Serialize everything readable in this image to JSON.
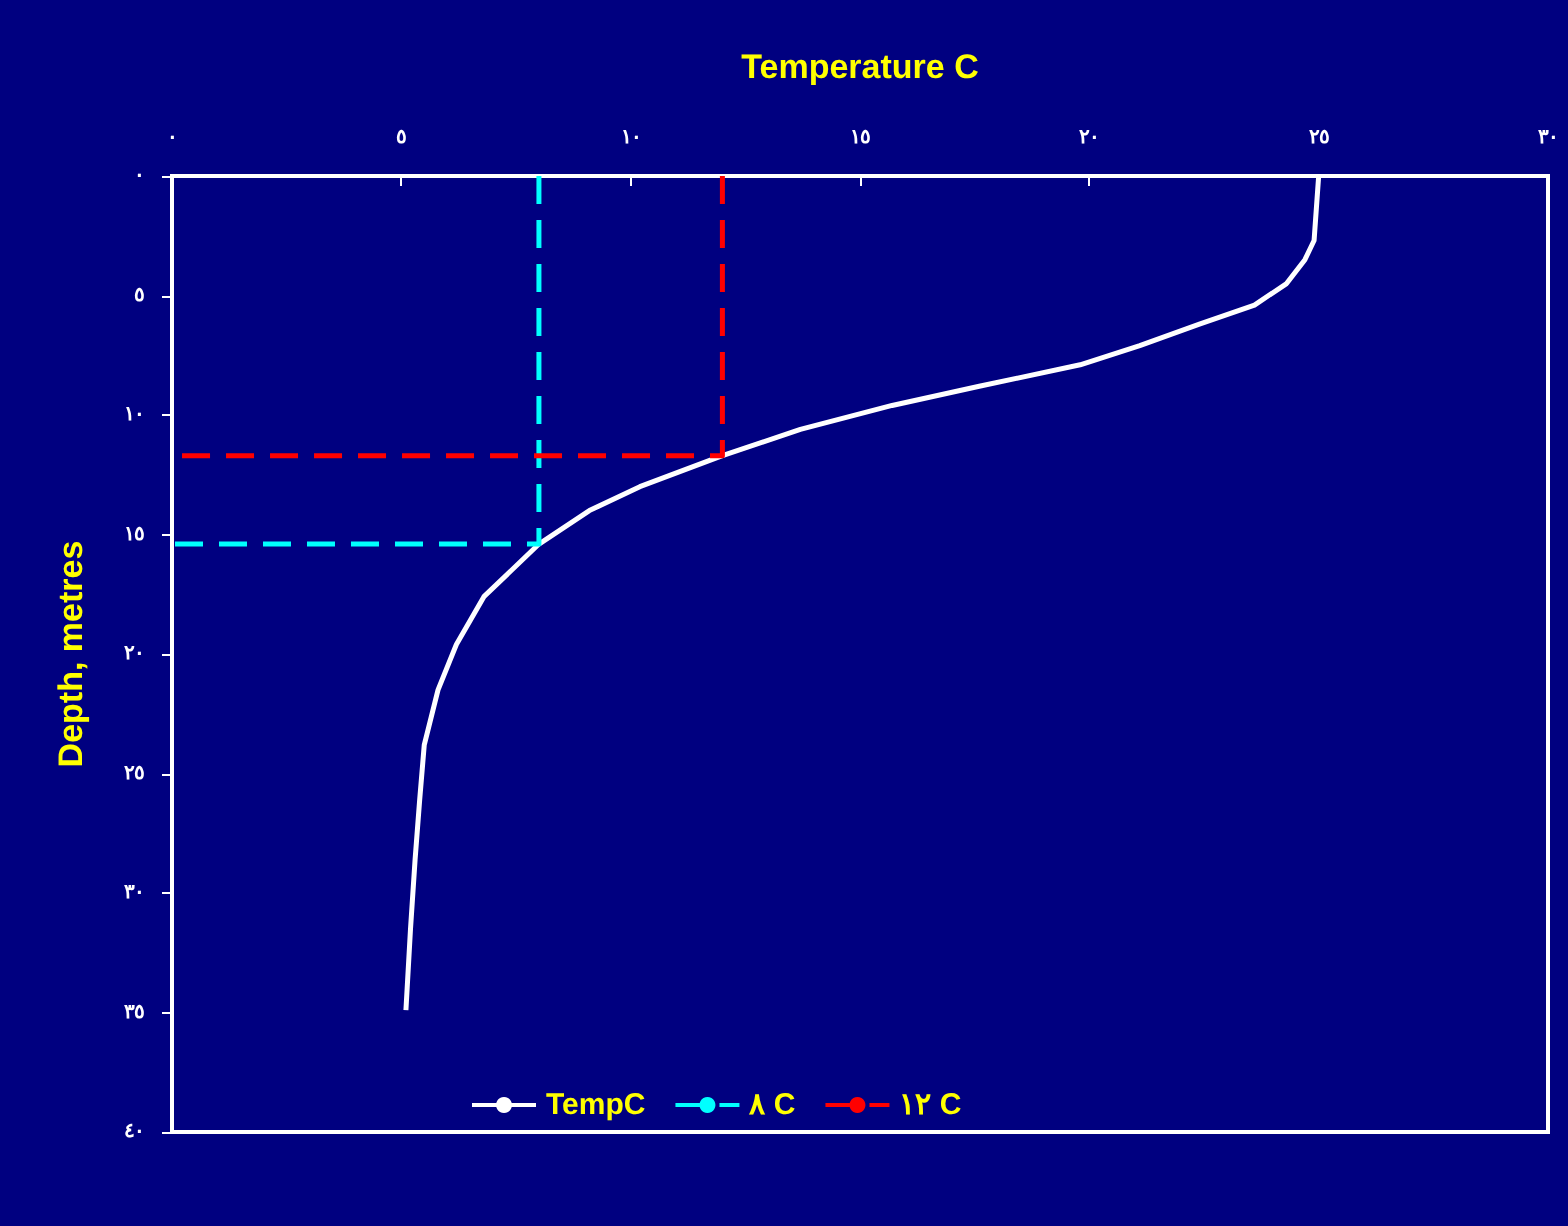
{
  "chart_data": {
    "type": "line",
    "xlabel": "Temperature C",
    "ylabel": "Depth, metres",
    "xlim": [
      0,
      30
    ],
    "ylim": [
      40,
      0
    ],
    "xticks": [
      {
        "value": 0,
        "label": "٠"
      },
      {
        "value": 5,
        "label": "٥"
      },
      {
        "value": 10,
        "label": "١٠"
      },
      {
        "value": 15,
        "label": "١٥"
      },
      {
        "value": 20,
        "label": "٢٠"
      },
      {
        "value": 25,
        "label": "٢٥"
      },
      {
        "value": 30,
        "label": "٣٠"
      }
    ],
    "yticks": [
      {
        "value": 0,
        "label": "٠"
      },
      {
        "value": 5,
        "label": "٥"
      },
      {
        "value": 10,
        "label": "١٠"
      },
      {
        "value": 15,
        "label": "١٥"
      },
      {
        "value": 20,
        "label": "٢٠"
      },
      {
        "value": 25,
        "label": "٢٥"
      },
      {
        "value": 30,
        "label": "٣٠"
      },
      {
        "value": 35,
        "label": "٣٥"
      },
      {
        "value": 40,
        "label": "٤٠"
      }
    ],
    "grid": false,
    "legend": "bottom",
    "marker": "none",
    "series": [
      {
        "name": "TempC",
        "color": "#ffffff",
        "line_style": "solid",
        "x": [
          25,
          24.9,
          24.7,
          24.3,
          23.6,
          22.4,
          21.1,
          19.8,
          17.6,
          15.7,
          13.7,
          12,
          10.2,
          9.1,
          8,
          6.8,
          6.2,
          5.8,
          5.5,
          5.4,
          5.3,
          5.2,
          5.1
        ],
        "values": [
          0,
          2.7,
          3.5,
          4.5,
          5.4,
          6.2,
          7.1,
          7.9,
          8.8,
          9.6,
          10.6,
          11.7,
          13,
          14,
          15.4,
          17.6,
          19.6,
          21.5,
          23.8,
          26.1,
          28.6,
          31.5,
          34.9
        ]
      },
      {
        "name": "٨ C",
        "color": "#00ffff",
        "line_style": "dashed",
        "x": [
          8,
          8,
          0
        ],
        "values": [
          0,
          15.4,
          15.4
        ]
      },
      {
        "name": "١٢ C",
        "color": "#ff0000",
        "line_style": "dashed",
        "x": [
          12,
          12,
          0
        ],
        "values": [
          0,
          11.7,
          11.7
        ]
      }
    ]
  }
}
